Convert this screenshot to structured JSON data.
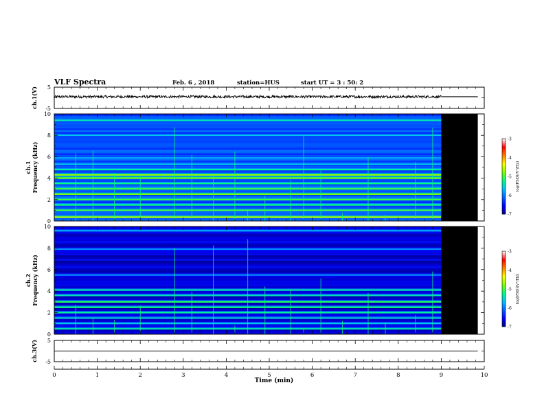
{
  "header": {
    "title": "VLF Spectra",
    "date": "Feb. 6 , 2018",
    "station": "station=HUS",
    "start": "start UT = 3 : 50: 2"
  },
  "colors": {
    "background": "#ffffff",
    "axes": "#000000",
    "no_data": "#000000",
    "colormap": [
      "#00007f",
      "#0000ff",
      "#0060ff",
      "#00c0ff",
      "#00ff80",
      "#80ff00",
      "#ffff00",
      "#ff8000",
      "#ff0000",
      "#ffffff"
    ]
  },
  "chart_data": [
    {
      "type": "line",
      "id": "ch1-waveform",
      "ylabel": "ch.1(V)",
      "ylim": [
        -5,
        5
      ],
      "yticks": [
        "5",
        "-5"
      ],
      "xlim": [
        0,
        10
      ],
      "data_end_min": 9.0,
      "series": [
        {
          "x": [
            0,
            1,
            2,
            3,
            4,
            5,
            6,
            7,
            8,
            9,
            9.85
          ],
          "y": [
            0.5,
            0.5,
            0.5,
            0.5,
            0.5,
            0.5,
            0.5,
            0.5,
            0.5,
            0.5,
            0.5
          ],
          "amplitude_v": 1.0
        }
      ]
    },
    {
      "type": "heatmap",
      "id": "ch1-spectrogram",
      "ylabel": "ch.1\nFrequency (kHz)",
      "ylim": [
        0,
        10
      ],
      "yticks": [
        "0",
        "2",
        "4",
        "6",
        "8",
        "10"
      ],
      "xlim": [
        0,
        10
      ],
      "data_end_min": 9.0,
      "colorbar": {
        "label": "log(PSD)(V²/Hz)",
        "range": [
          -7,
          -3
        ],
        "ticks": [
          "-3",
          "-4",
          "-5",
          "-6",
          "-7"
        ]
      },
      "bands_khz": [
        {
          "f": 0.35,
          "level": -4.6
        },
        {
          "f": 1.0,
          "level": -5.0
        },
        {
          "f": 1.5,
          "level": -5.2
        },
        {
          "f": 2.0,
          "level": -5.0
        },
        {
          "f": 2.5,
          "level": -4.8
        },
        {
          "f": 3.0,
          "level": -5.0
        },
        {
          "f": 3.5,
          "level": -5.2
        },
        {
          "f": 4.0,
          "level": -4.8
        },
        {
          "f": 4.3,
          "level": -4.7
        },
        {
          "f": 4.8,
          "level": -5.3
        },
        {
          "f": 5.3,
          "level": -5.6
        },
        {
          "f": 5.9,
          "level": -5.8
        },
        {
          "f": 8.0,
          "level": -5.6
        },
        {
          "f": 9.4,
          "level": -5.4
        }
      ],
      "background_level": -6.2,
      "sferic_times_min": [
        0.5,
        0.9,
        1.4,
        2.0,
        2.8,
        3.2,
        3.7,
        4.2,
        4.5,
        4.9,
        5.5,
        5.8,
        6.2,
        6.7,
        7.3,
        7.7,
        8.4,
        8.8
      ]
    },
    {
      "type": "heatmap",
      "id": "ch2-spectrogram",
      "ylabel": "ch.2\nFrequency (kHz)",
      "ylim": [
        0,
        10
      ],
      "yticks": [
        "0",
        "2",
        "4",
        "6",
        "8",
        "10"
      ],
      "xlim": [
        0,
        10
      ],
      "data_end_min": 9.0,
      "colorbar": {
        "label": "log(PSD)(V²/Hz)",
        "range": [
          -7,
          -3
        ],
        "ticks": [
          "-3",
          "-4",
          "-5",
          "-6",
          "-7"
        ]
      },
      "bands_khz": [
        {
          "f": 0.5,
          "level": -5.4
        },
        {
          "f": 1.0,
          "level": -5.6
        },
        {
          "f": 1.5,
          "level": -5.5
        },
        {
          "f": 2.0,
          "level": -5.3
        },
        {
          "f": 2.5,
          "level": -5.2
        },
        {
          "f": 3.0,
          "level": -5.1
        },
        {
          "f": 3.6,
          "level": -5.4
        },
        {
          "f": 4.1,
          "level": -5.4
        },
        {
          "f": 5.5,
          "level": -5.9
        },
        {
          "f": 7.9,
          "level": -5.9
        },
        {
          "f": 9.6,
          "level": -5.7
        }
      ],
      "background_level": -6.7,
      "sferic_times_min": [
        0.5,
        0.9,
        1.4,
        2.0,
        2.8,
        3.2,
        3.7,
        4.2,
        4.5,
        4.9,
        5.5,
        5.8,
        6.2,
        6.7,
        7.3,
        7.7,
        8.4,
        8.8
      ]
    },
    {
      "type": "line",
      "id": "ch3-waveform",
      "ylabel": "ch.3(V)",
      "ylim": [
        -5,
        5
      ],
      "yticks": [
        "5",
        "-5"
      ],
      "xlim": [
        0,
        10
      ],
      "series": [
        {
          "x": [
            0,
            9.85
          ],
          "y": [
            0,
            0
          ]
        }
      ]
    }
  ],
  "x_axis": {
    "label": "Time (min)",
    "ticks": [
      "0",
      "1",
      "2",
      "3",
      "4",
      "5",
      "6",
      "7",
      "8",
      "9",
      "10"
    ]
  }
}
